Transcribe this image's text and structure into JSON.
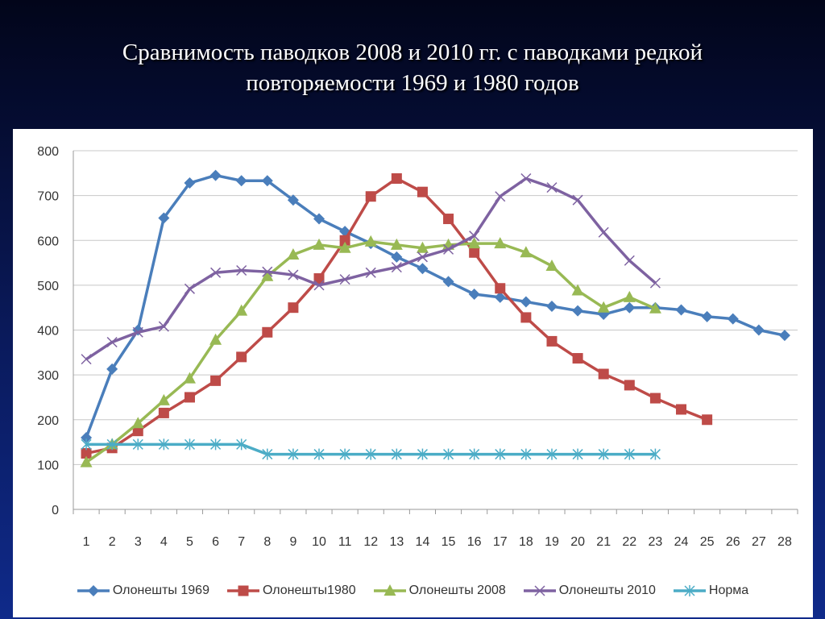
{
  "slide": {
    "title_line1": "Сравнимость паводков 2008 и 2010 гг. с паводками редкой",
    "title_line2": "повторяемости 1969 и 1980 годов"
  },
  "chart_data": {
    "type": "line",
    "title": "",
    "xlabel": "",
    "ylabel": "",
    "categories": [
      "1",
      "2",
      "3",
      "4",
      "5",
      "6",
      "7",
      "8",
      "9",
      "10",
      "11",
      "12",
      "13",
      "14",
      "15",
      "16",
      "17",
      "18",
      "19",
      "20",
      "21",
      "22",
      "23",
      "24",
      "25",
      "26",
      "27",
      "28"
    ],
    "ylim": [
      0,
      800
    ],
    "yticks": [
      0,
      100,
      200,
      300,
      400,
      500,
      600,
      700,
      800
    ],
    "grid": true,
    "legend_position": "bottom",
    "series": [
      {
        "name": "Олонешты 1969",
        "color": "#4a7ebb",
        "marker": "diamond",
        "values": [
          160,
          313,
          400,
          650,
          728,
          745,
          733,
          733,
          690,
          648,
          620,
          593,
          563,
          537,
          508,
          480,
          473,
          463,
          453,
          443,
          435,
          450,
          450,
          445,
          430,
          425,
          400,
          388
        ]
      },
      {
        "name": "Олонешты1980",
        "color": "#be4b48",
        "marker": "square",
        "values": [
          125,
          137,
          175,
          215,
          250,
          287,
          340,
          395,
          450,
          515,
          600,
          698,
          738,
          708,
          648,
          573,
          493,
          428,
          375,
          337,
          302,
          277,
          248,
          223,
          200,
          null,
          null,
          null
        ]
      },
      {
        "name": "Олонешты 2008",
        "color": "#98b954",
        "marker": "triangle",
        "values": [
          105,
          145,
          192,
          243,
          292,
          378,
          443,
          520,
          568,
          590,
          583,
          597,
          590,
          583,
          590,
          593,
          593,
          573,
          543,
          488,
          450,
          473,
          448,
          null,
          null,
          null,
          null,
          null
        ]
      },
      {
        "name": "Олонешты 2010",
        "color": "#7e62a1",
        "marker": "x",
        "values": [
          335,
          373,
          395,
          408,
          492,
          528,
          533,
          530,
          523,
          500,
          513,
          528,
          540,
          563,
          580,
          610,
          698,
          738,
          718,
          690,
          618,
          555,
          505,
          null,
          null,
          null,
          null,
          null
        ]
      },
      {
        "name": "Норма",
        "color": "#4bacc6",
        "marker": "star",
        "values": [
          145,
          145,
          145,
          145,
          145,
          145,
          145,
          123,
          123,
          123,
          123,
          123,
          123,
          123,
          123,
          123,
          123,
          123,
          123,
          123,
          123,
          123,
          123,
          null,
          null,
          null,
          null,
          null
        ]
      }
    ]
  }
}
